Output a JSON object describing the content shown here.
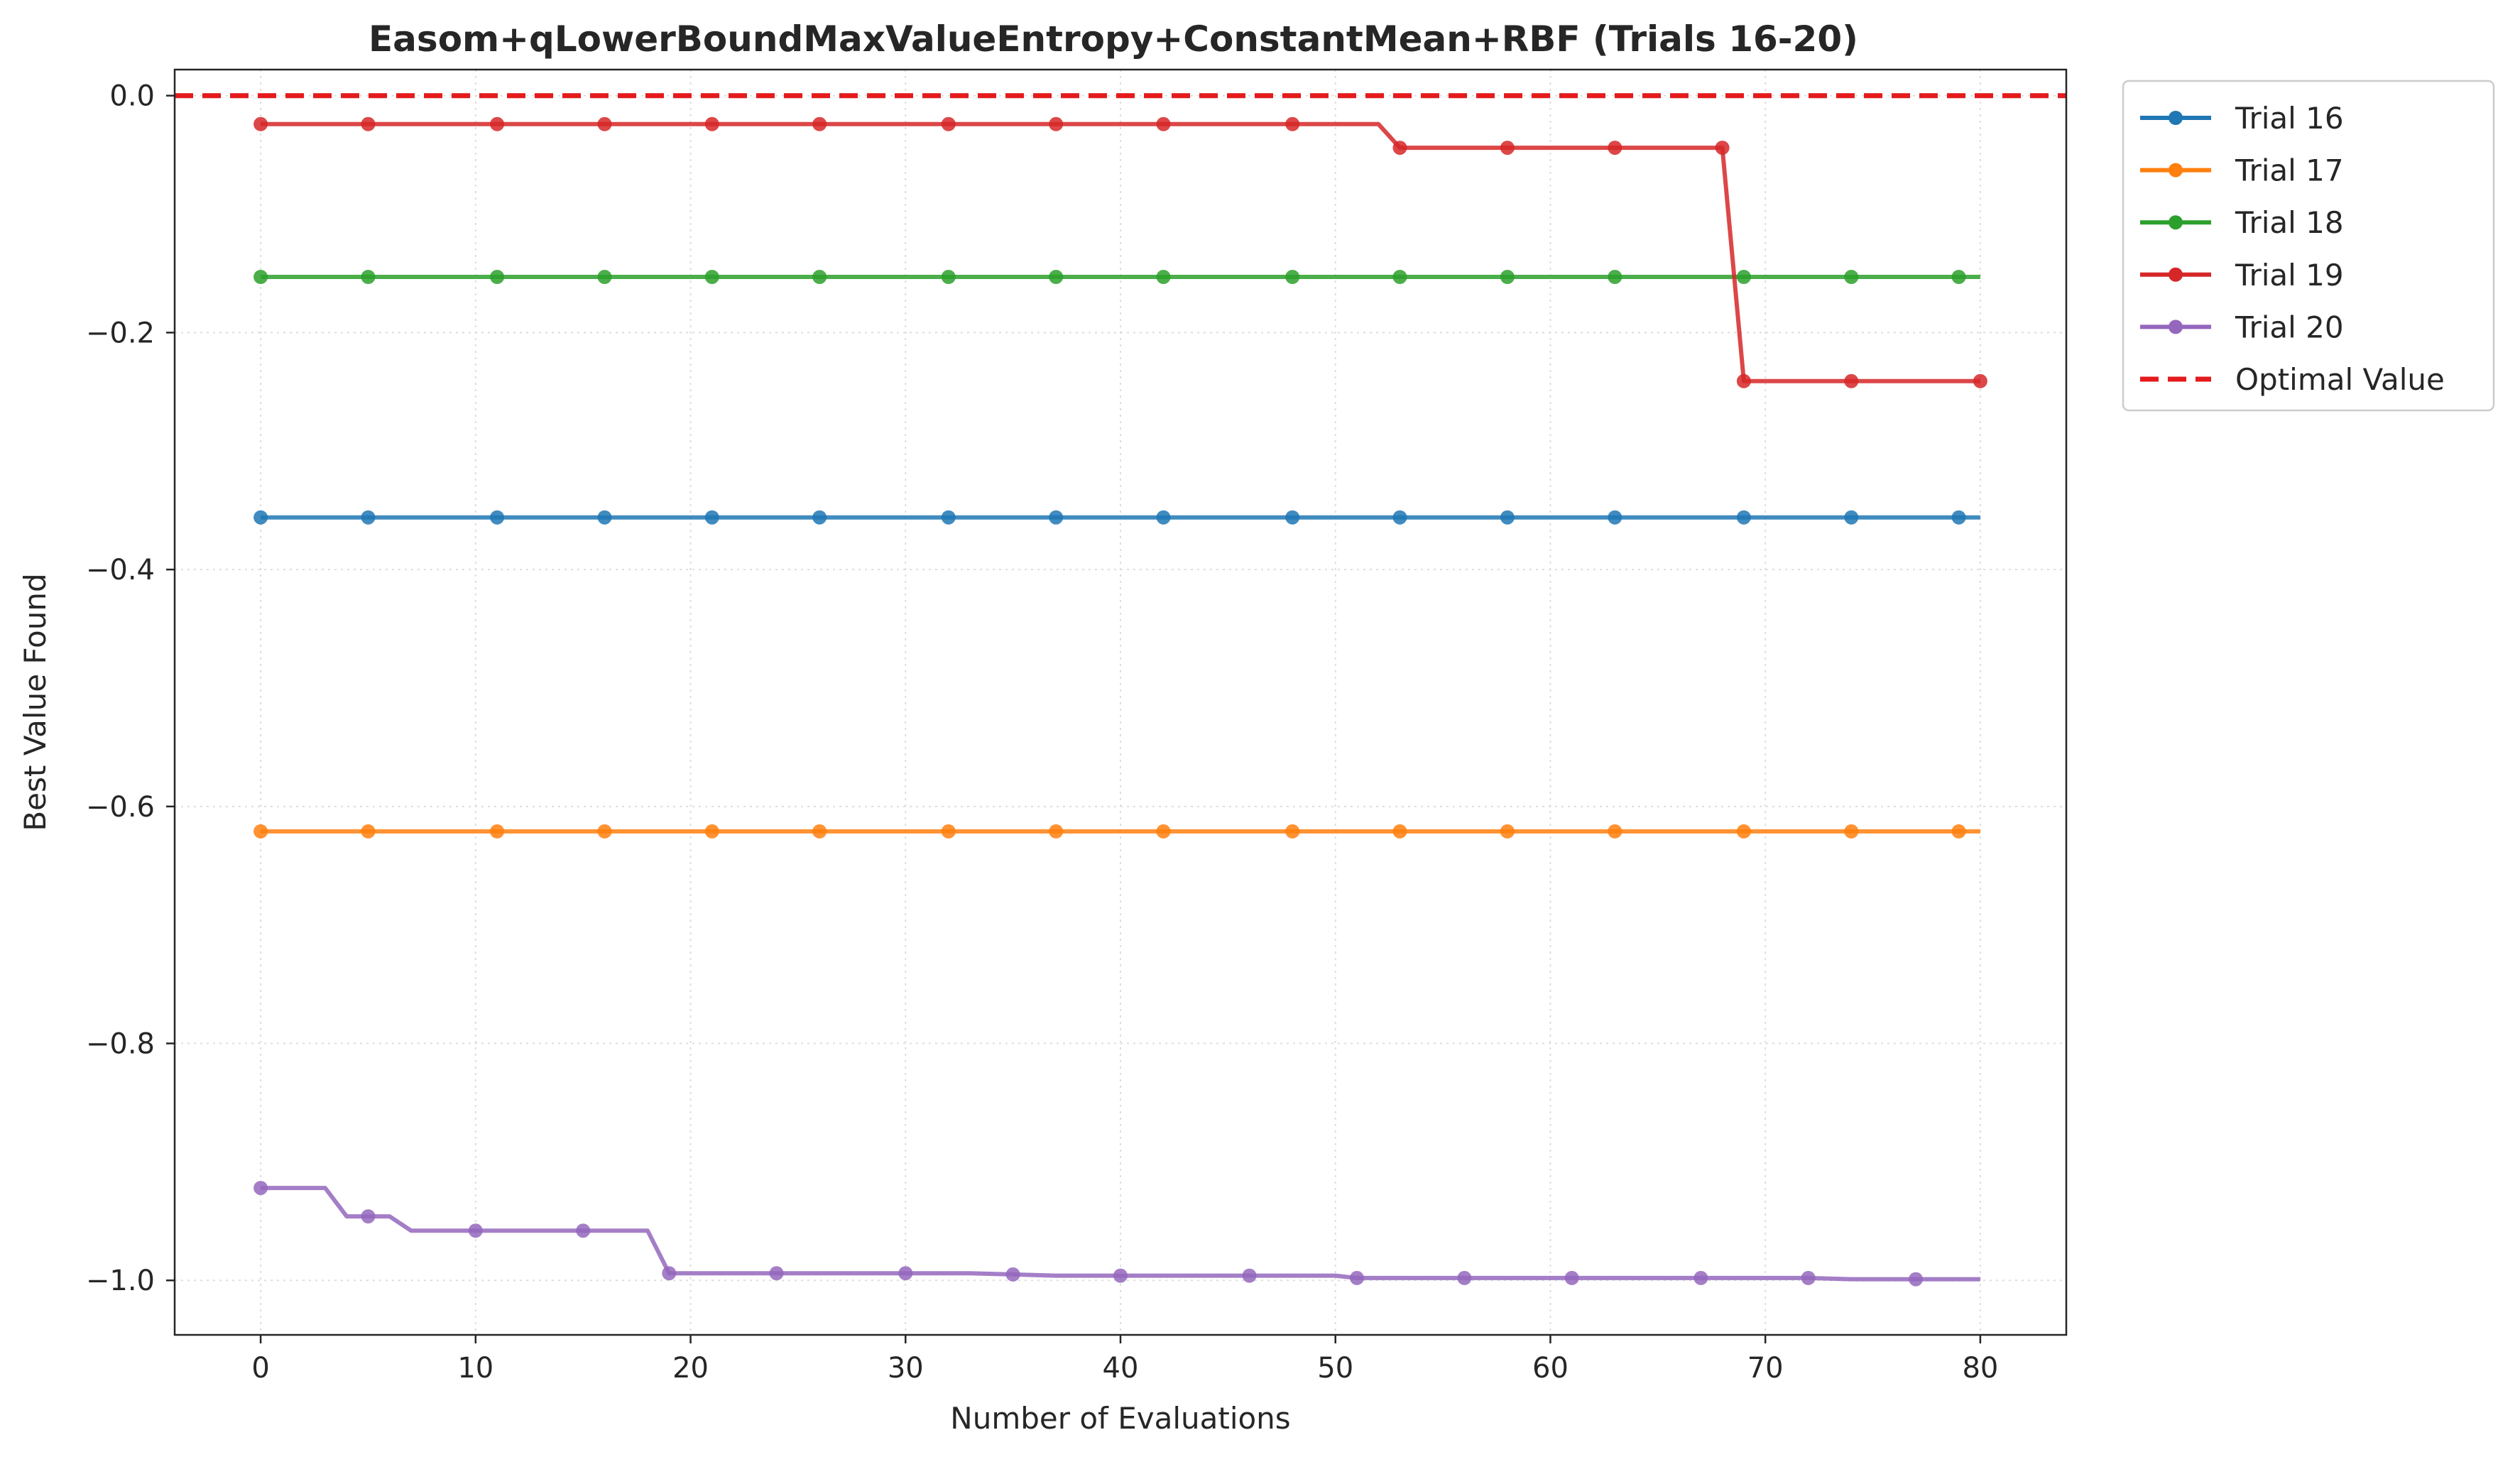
{
  "chart_data": {
    "type": "line",
    "title": "Easom+qLowerBoundMaxValueEntropy+ConstantMean+RBF (Trials 16-20)",
    "xlabel": "Number of Evaluations",
    "ylabel": "Best Value Found",
    "xlim": [
      -4,
      84
    ],
    "ylim": [
      -1.046,
      0.022
    ],
    "xticks": [
      0,
      10,
      20,
      30,
      40,
      50,
      60,
      70,
      80
    ],
    "yticks": [
      0.0,
      -0.2,
      -0.4,
      -0.6,
      -0.8,
      -1.0
    ],
    "xtick_labels": [
      "0",
      "10",
      "20",
      "30",
      "40",
      "50",
      "60",
      "70",
      "80"
    ],
    "ytick_labels": [
      "0.0",
      "−0.2",
      "−0.4",
      "−0.6",
      "−0.8",
      "−1.0"
    ],
    "grid": true,
    "legend_position": "outside-top-right",
    "series": [
      {
        "name": "Trial 16",
        "color": "#1f77b4",
        "x": [
          0,
          80
        ],
        "y": [
          -0.356,
          -0.356
        ],
        "marker_x": [
          0,
          5,
          11,
          16,
          21,
          26,
          32,
          37,
          42,
          48,
          53,
          58,
          63,
          69,
          74,
          79
        ]
      },
      {
        "name": "Trial 17",
        "color": "#ff7f0e",
        "x": [
          0,
          80
        ],
        "y": [
          -0.621,
          -0.621
        ],
        "marker_x": [
          0,
          5,
          11,
          16,
          21,
          26,
          32,
          37,
          42,
          48,
          53,
          58,
          63,
          69,
          74,
          79
        ]
      },
      {
        "name": "Trial 18",
        "color": "#2ca02c",
        "x": [
          0,
          80
        ],
        "y": [
          -0.153,
          -0.153
        ],
        "marker_x": [
          0,
          5,
          11,
          16,
          21,
          26,
          32,
          37,
          42,
          48,
          53,
          58,
          63,
          69,
          74,
          79
        ]
      },
      {
        "name": "Trial 19",
        "color": "#d62728",
        "x": [
          0,
          52,
          53,
          68,
          69,
          80
        ],
        "y": [
          -0.024,
          -0.024,
          -0.044,
          -0.044,
          -0.241,
          -0.241
        ],
        "marker_x": [
          0,
          5,
          11,
          16,
          21,
          26,
          32,
          37,
          42,
          48,
          53,
          58,
          63,
          68,
          69,
          74,
          80
        ]
      },
      {
        "name": "Trial 20",
        "color": "#9467bd",
        "x": [
          0,
          3,
          4,
          6,
          7,
          18,
          19,
          33,
          35,
          37,
          50,
          51,
          72,
          74,
          80
        ],
        "y": [
          -0.922,
          -0.922,
          -0.946,
          -0.946,
          -0.958,
          -0.958,
          -0.994,
          -0.994,
          -0.995,
          -0.996,
          -0.996,
          -0.998,
          -0.998,
          -0.999,
          -0.999
        ],
        "marker_x": [
          0,
          5,
          10,
          15,
          19,
          24,
          30,
          35,
          40,
          46,
          51,
          56,
          61,
          67,
          72,
          77
        ]
      }
    ],
    "reference_line": {
      "name": "Optimal Value",
      "color": "#e41a1c",
      "y": 0.0,
      "style": "dashed"
    }
  }
}
